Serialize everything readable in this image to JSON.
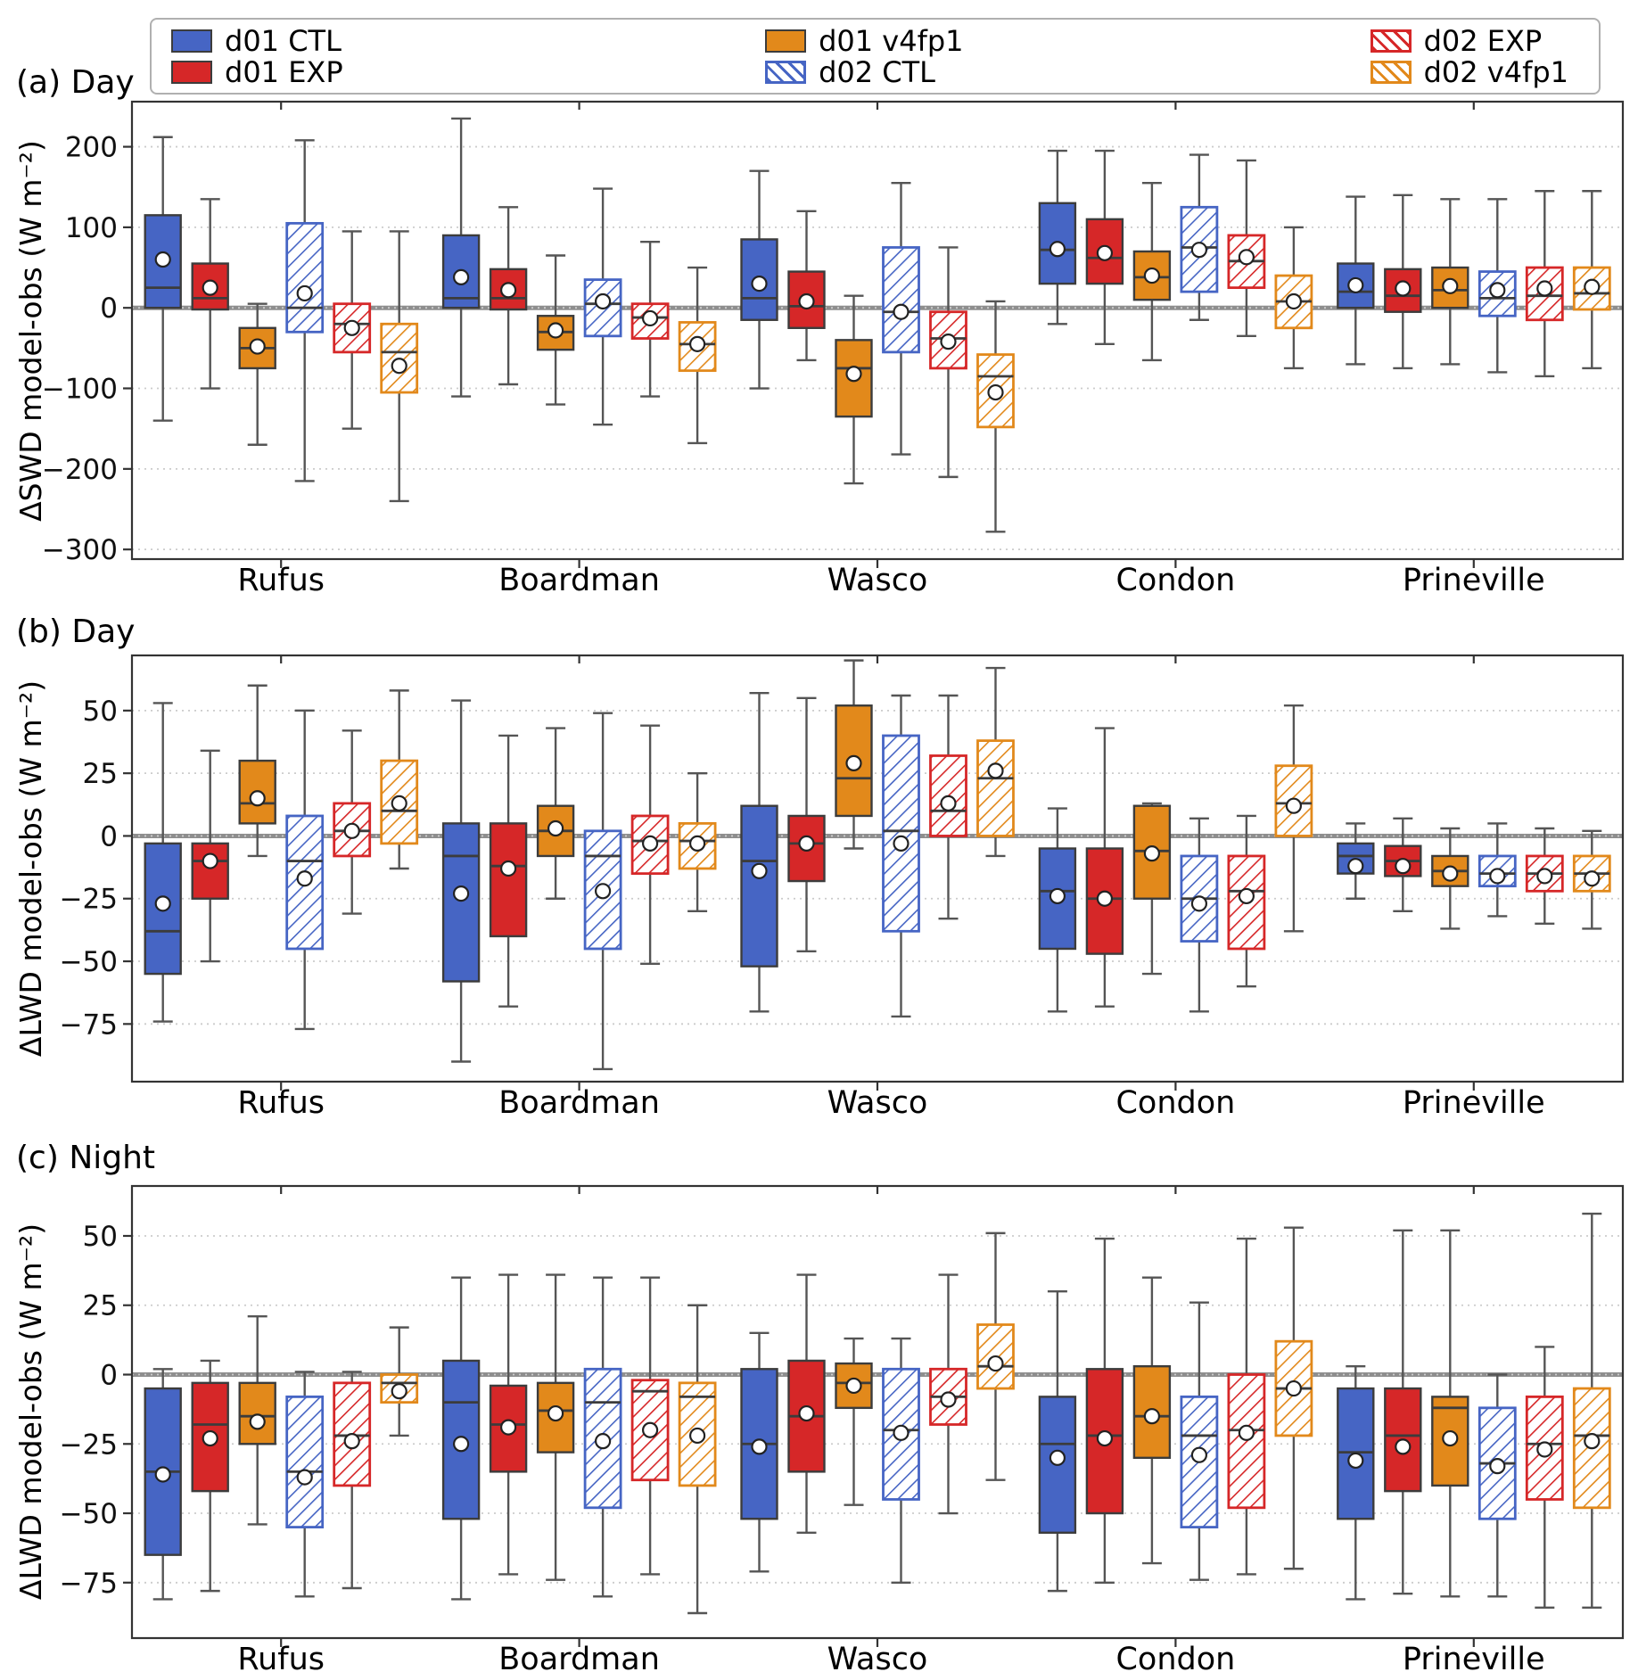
{
  "legend": {
    "items": [
      {
        "label": "d01 CTL",
        "color": "#4665c4",
        "hatch": false
      },
      {
        "label": "d01 EXP",
        "color": "#d62728",
        "hatch": false
      },
      {
        "label": "d01 v4fp1",
        "color": "#e2891b",
        "hatch": false
      },
      {
        "label": "d02 CTL",
        "color": "#4665c4",
        "hatch": true
      },
      {
        "label": "d02 EXP",
        "color": "#d62728",
        "hatch": true
      },
      {
        "label": "d02 v4fp1",
        "color": "#e2891b",
        "hatch": true
      }
    ]
  },
  "style": {
    "box_edge": "#3c3c3c",
    "whisker": "#555555",
    "zero_line": "#8e8e8e",
    "grid": "#cccccc",
    "axis": "#333333"
  },
  "chart_data": [
    {
      "type": "boxplot",
      "title": "(a) Day",
      "ylabel": "ΔSWD model-obs (W m⁻²)",
      "ylim": [
        -312,
        256
      ],
      "yticks": [
        200,
        100,
        0,
        -100,
        -200,
        -300
      ],
      "categories": [
        "Rufus",
        "Boardman",
        "Wasco",
        "Condon",
        "Prineville"
      ],
      "box_format": [
        "whisker_low",
        "q1",
        "median",
        "q3",
        "whisker_high",
        "mean"
      ],
      "series": [
        {
          "name": "d01 CTL",
          "boxes": [
            [
              -140,
              0,
              25,
              115,
              212,
              60
            ],
            [
              -110,
              0,
              12,
              90,
              235,
              38
            ],
            [
              -100,
              -15,
              12,
              85,
              170,
              30
            ],
            [
              -20,
              30,
              72,
              130,
              195,
              73
            ],
            [
              -70,
              0,
              20,
              55,
              138,
              28
            ]
          ]
        },
        {
          "name": "d01 EXP",
          "boxes": [
            [
              -100,
              -2,
              12,
              55,
              135,
              25
            ],
            [
              -95,
              -2,
              12,
              48,
              125,
              22
            ],
            [
              -65,
              -25,
              2,
              45,
              120,
              8
            ],
            [
              -45,
              30,
              62,
              110,
              195,
              68
            ],
            [
              -75,
              -5,
              15,
              48,
              140,
              24
            ]
          ]
        },
        {
          "name": "d01 v4fp1",
          "boxes": [
            [
              -170,
              -75,
              -50,
              -25,
              5,
              -48
            ],
            [
              -120,
              -52,
              -30,
              -10,
              65,
              -28
            ],
            [
              -218,
              -135,
              -75,
              -40,
              15,
              -82
            ],
            [
              -65,
              10,
              38,
              70,
              155,
              40
            ],
            [
              -70,
              0,
              22,
              50,
              135,
              27
            ]
          ]
        },
        {
          "name": "d02 CTL",
          "boxes": [
            [
              -215,
              -30,
              0,
              105,
              208,
              18
            ],
            [
              -145,
              -35,
              5,
              35,
              148,
              8
            ],
            [
              -182,
              -55,
              -5,
              75,
              155,
              -5
            ],
            [
              -15,
              20,
              75,
              125,
              190,
              72
            ],
            [
              -80,
              -10,
              12,
              45,
              135,
              22
            ]
          ]
        },
        {
          "name": "d02 EXP",
          "boxes": [
            [
              -150,
              -55,
              -20,
              5,
              95,
              -25
            ],
            [
              -110,
              -38,
              -12,
              5,
              82,
              -13
            ],
            [
              -210,
              -75,
              -38,
              -5,
              75,
              -42
            ],
            [
              -35,
              25,
              58,
              90,
              183,
              63
            ],
            [
              -85,
              -15,
              15,
              50,
              145,
              24
            ]
          ]
        },
        {
          "name": "d02 v4fp1",
          "boxes": [
            [
              -240,
              -105,
              -55,
              -20,
              95,
              -72
            ],
            [
              -168,
              -78,
              -45,
              -18,
              50,
              -45
            ],
            [
              -278,
              -148,
              -85,
              -58,
              8,
              -105
            ],
            [
              -75,
              -25,
              8,
              40,
              100,
              8
            ],
            [
              -75,
              -2,
              18,
              50,
              145,
              26
            ]
          ]
        }
      ]
    },
    {
      "type": "boxplot",
      "title": "(b) Day",
      "ylabel": "ΔLWD model-obs (W m⁻²)",
      "ylim": [
        -98,
        72
      ],
      "yticks": [
        50,
        25,
        0,
        -25,
        -50,
        -75
      ],
      "categories": [
        "Rufus",
        "Boardman",
        "Wasco",
        "Condon",
        "Prineville"
      ],
      "box_format": [
        "whisker_low",
        "q1",
        "median",
        "q3",
        "whisker_high",
        "mean"
      ],
      "series": [
        {
          "name": "d01 CTL",
          "boxes": [
            [
              -74,
              -55,
              -38,
              -3,
              53,
              -27
            ],
            [
              -90,
              -58,
              -8,
              5,
              54,
              -23
            ],
            [
              -70,
              -52,
              -10,
              12,
              57,
              -14
            ],
            [
              -70,
              -45,
              -22,
              -5,
              11,
              -24
            ],
            [
              -25,
              -15,
              -8,
              -3,
              5,
              -12
            ]
          ]
        },
        {
          "name": "d01 EXP",
          "boxes": [
            [
              -50,
              -25,
              -10,
              -3,
              34,
              -10
            ],
            [
              -68,
              -40,
              -12,
              5,
              40,
              -13
            ],
            [
              -46,
              -18,
              -3,
              8,
              55,
              -3
            ],
            [
              -68,
              -47,
              -25,
              -5,
              43,
              -25
            ],
            [
              -30,
              -16,
              -10,
              -4,
              7,
              -12
            ]
          ]
        },
        {
          "name": "d01 v4fp1",
          "boxes": [
            [
              -8,
              5,
              13,
              30,
              60,
              15
            ],
            [
              -25,
              -8,
              2,
              12,
              43,
              3
            ],
            [
              -5,
              8,
              23,
              52,
              70,
              29
            ],
            [
              -55,
              -25,
              -6,
              12,
              13,
              -7
            ],
            [
              -37,
              -20,
              -14,
              -8,
              3,
              -15
            ]
          ]
        },
        {
          "name": "d02 CTL",
          "boxes": [
            [
              -77,
              -45,
              -10,
              8,
              50,
              -17
            ],
            [
              -93,
              -45,
              -8,
              2,
              49,
              -22
            ],
            [
              -72,
              -38,
              2,
              40,
              56,
              -3
            ],
            [
              -70,
              -42,
              -25,
              -8,
              7,
              -27
            ],
            [
              -32,
              -20,
              -15,
              -8,
              5,
              -16
            ]
          ]
        },
        {
          "name": "d02 EXP",
          "boxes": [
            [
              -31,
              -8,
              2,
              13,
              42,
              2
            ],
            [
              -51,
              -15,
              -2,
              8,
              44,
              -3
            ],
            [
              -33,
              0,
              10,
              32,
              56,
              13
            ],
            [
              -60,
              -45,
              -22,
              -8,
              8,
              -24
            ],
            [
              -35,
              -22,
              -15,
              -8,
              3,
              -16
            ]
          ]
        },
        {
          "name": "d02 v4fp1",
          "boxes": [
            [
              -13,
              -3,
              10,
              30,
              58,
              13
            ],
            [
              -30,
              -13,
              -2,
              5,
              25,
              -3
            ],
            [
              -8,
              0,
              23,
              38,
              67,
              26
            ],
            [
              -38,
              0,
              13,
              28,
              52,
              12
            ],
            [
              -37,
              -22,
              -15,
              -8,
              2,
              -17
            ]
          ]
        }
      ]
    },
    {
      "type": "boxplot",
      "title": "(c) Night",
      "ylabel": "ΔLWD model-obs (W m⁻²)",
      "ylim": [
        -95,
        68
      ],
      "yticks": [
        50,
        25,
        0,
        -25,
        -50,
        -75
      ],
      "categories": [
        "Rufus",
        "Boardman",
        "Wasco",
        "Condon",
        "Prineville"
      ],
      "box_format": [
        "whisker_low",
        "q1",
        "median",
        "q3",
        "whisker_high",
        "mean"
      ],
      "series": [
        {
          "name": "d01 CTL",
          "boxes": [
            [
              -81,
              -65,
              -35,
              -5,
              2,
              -36
            ],
            [
              -81,
              -52,
              -10,
              5,
              35,
              -25
            ],
            [
              -71,
              -52,
              -25,
              2,
              15,
              -26
            ],
            [
              -78,
              -57,
              -25,
              -8,
              30,
              -30
            ],
            [
              -81,
              -52,
              -28,
              -5,
              3,
              -31
            ]
          ]
        },
        {
          "name": "d01 EXP",
          "boxes": [
            [
              -78,
              -42,
              -18,
              -3,
              5,
              -23
            ],
            [
              -72,
              -35,
              -18,
              -4,
              36,
              -19
            ],
            [
              -57,
              -35,
              -15,
              5,
              36,
              -14
            ],
            [
              -75,
              -50,
              -22,
              2,
              49,
              -23
            ],
            [
              -79,
              -42,
              -22,
              -5,
              52,
              -26
            ]
          ]
        },
        {
          "name": "d01 v4fp1",
          "boxes": [
            [
              -54,
              -25,
              -15,
              -3,
              21,
              -17
            ],
            [
              -74,
              -28,
              -13,
              -3,
              36,
              -14
            ],
            [
              -47,
              -12,
              -3,
              4,
              13,
              -4
            ],
            [
              -68,
              -30,
              -15,
              3,
              35,
              -15
            ],
            [
              -80,
              -40,
              -12,
              -8,
              52,
              -23
            ]
          ]
        },
        {
          "name": "d02 CTL",
          "boxes": [
            [
              -80,
              -55,
              -35,
              -8,
              1,
              -37
            ],
            [
              -80,
              -48,
              -10,
              2,
              35,
              -24
            ],
            [
              -75,
              -45,
              -20,
              2,
              13,
              -21
            ],
            [
              -74,
              -55,
              -22,
              -8,
              26,
              -29
            ],
            [
              -80,
              -52,
              -32,
              -12,
              0,
              -33
            ]
          ]
        },
        {
          "name": "d02 EXP",
          "boxes": [
            [
              -77,
              -40,
              -22,
              -3,
              1,
              -24
            ],
            [
              -72,
              -38,
              -6,
              -2,
              35,
              -20
            ],
            [
              -50,
              -18,
              -8,
              2,
              36,
              -9
            ],
            [
              -72,
              -48,
              -20,
              0,
              49,
              -21
            ],
            [
              -84,
              -45,
              -25,
              -8,
              10,
              -27
            ]
          ]
        },
        {
          "name": "d02 v4fp1",
          "boxes": [
            [
              -22,
              -10,
              -3,
              0,
              17,
              -6
            ],
            [
              -86,
              -40,
              -8,
              -3,
              25,
              -22
            ],
            [
              -38,
              -5,
              3,
              18,
              51,
              4
            ],
            [
              -70,
              -22,
              -5,
              12,
              53,
              -5
            ],
            [
              -84,
              -48,
              -22,
              -5,
              58,
              -24
            ]
          ]
        }
      ]
    }
  ]
}
